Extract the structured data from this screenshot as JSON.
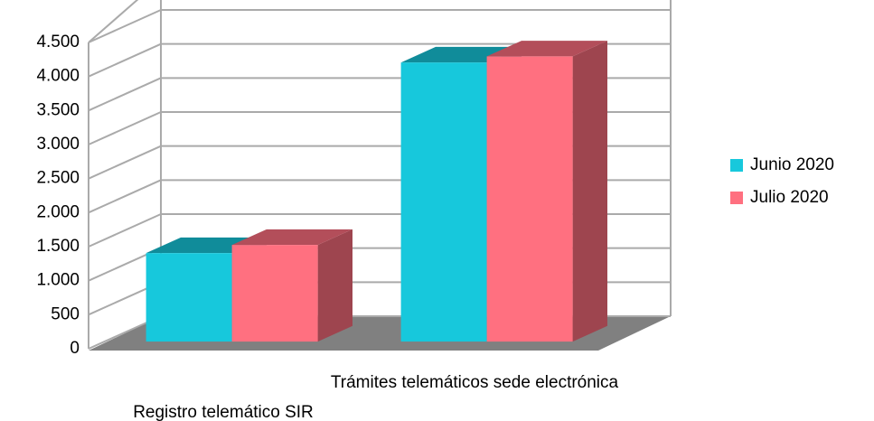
{
  "chart_data": {
    "type": "bar3d",
    "categories": [
      "Registro telemático SIR",
      "Trámites telemáticos sede electrónica"
    ],
    "series": [
      {
        "name": "Junio 2020",
        "color": "#17c8dc",
        "values": [
          1300,
          4100
        ]
      },
      {
        "name": "Julio 2020",
        "color": "#ff7080",
        "values": [
          1420,
          4190
        ]
      }
    ],
    "ylim": [
      0,
      4500
    ],
    "yticks": [
      0,
      500,
      {
        "value": 1000,
        "label": "1.000"
      },
      {
        "value": 1500,
        "label": "1.500"
      },
      {
        "value": 2000,
        "label": "2.000"
      },
      {
        "value": 2500,
        "label": "2.500"
      },
      {
        "value": 3000,
        "label": "3.000"
      },
      {
        "value": 3500,
        "label": "3.500"
      },
      {
        "value": 4000,
        "label": "4.000"
      },
      {
        "value": 4500,
        "label": "4.500"
      }
    ],
    "grid": true,
    "legend": "right"
  }
}
